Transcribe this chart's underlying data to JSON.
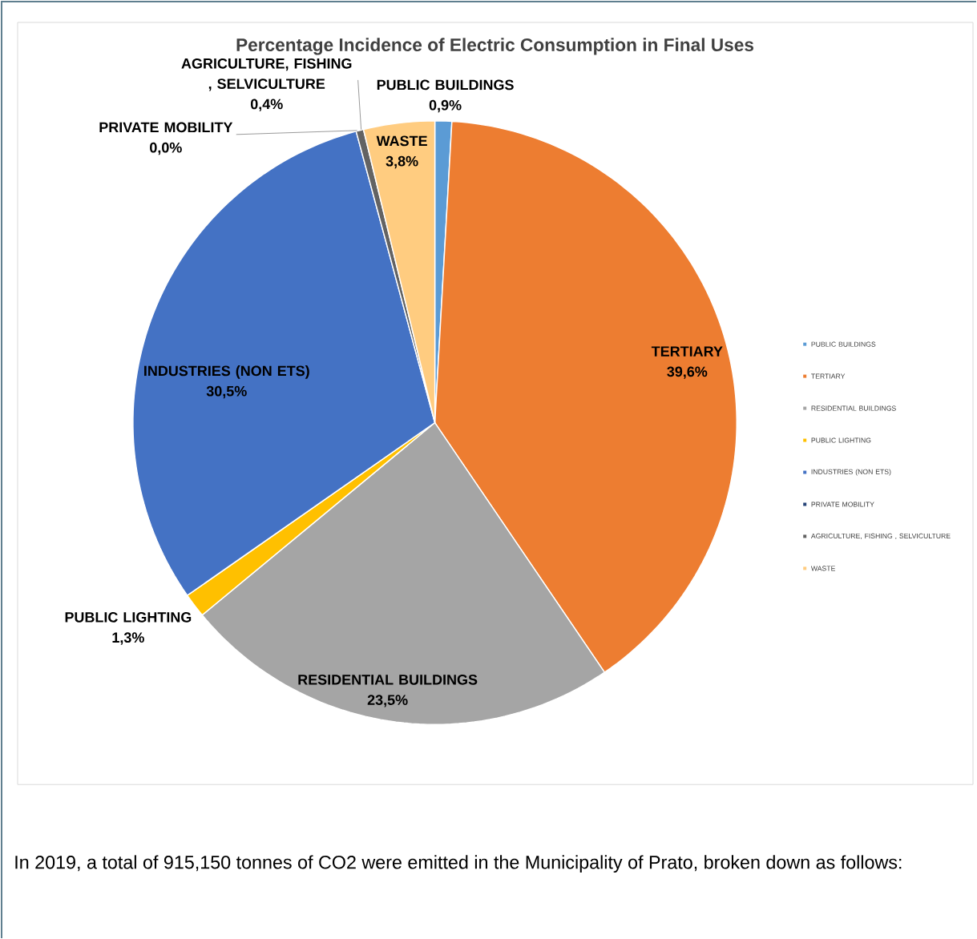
{
  "chart_data": {
    "type": "pie",
    "title": "Percentage Incidence of Electric Consumption in Final  Uses",
    "categories": [
      "PUBLIC BUILDINGS",
      "TERTIARY",
      "RESIDENTIAL BUILDINGS",
      "PUBLIC LIGHTING",
      "INDUSTRIES (NON ETS)",
      "PRIVATE MOBILITY",
      "AGRICULTURE, FISHING , SELVICULTURE",
      "WASTE"
    ],
    "values": [
      0.9,
      39.6,
      23.5,
      1.3,
      30.5,
      0.0,
      0.4,
      3.8
    ],
    "value_labels": [
      "0,9%",
      "39,6%",
      "23,5%",
      "1,3%",
      "30,5%",
      "0,0%",
      "0,4%",
      "3,8%"
    ],
    "colors": [
      "#5b9bd5",
      "#ed7d31",
      "#a5a5a5",
      "#ffc000",
      "#4472c4",
      "#264478",
      "#636363",
      "#ffcc80"
    ],
    "legend": "right",
    "annotations": [
      "In 2019, a total of 915,150 tonnes of CO2 were emitted in the Municipality of Prato, broken down as follows:"
    ]
  }
}
